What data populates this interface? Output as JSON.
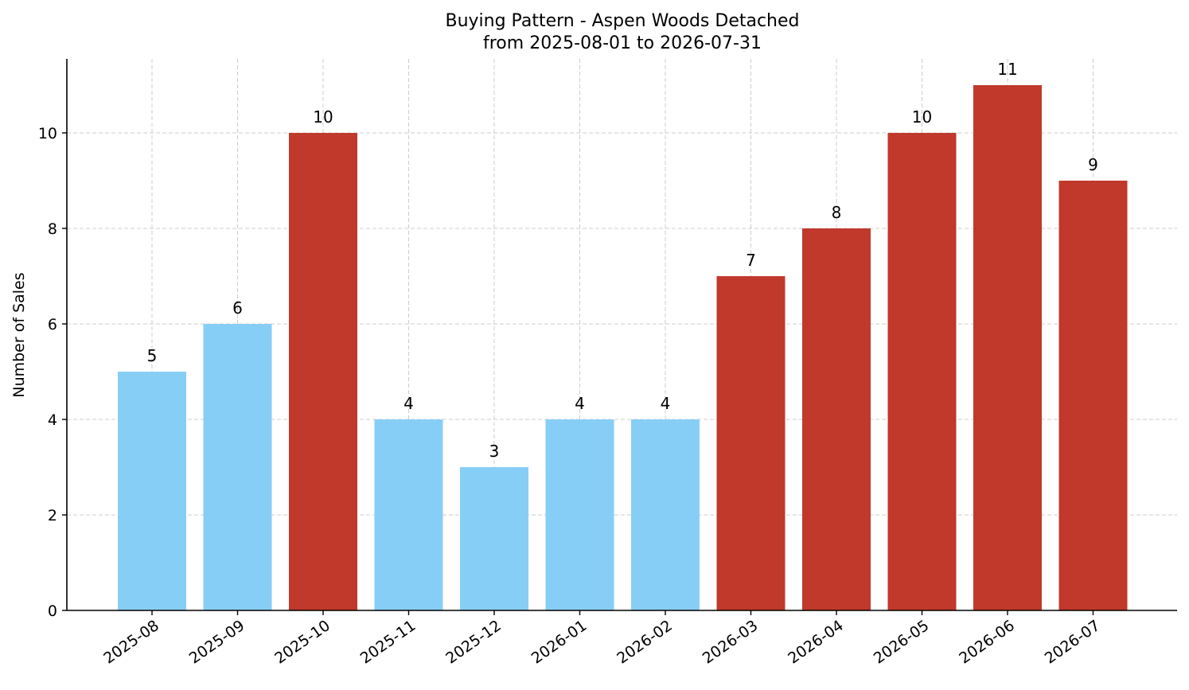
{
  "chart_data": {
    "type": "bar",
    "title_line1": "Buying Pattern - Aspen Woods Detached",
    "title_line2": "from 2025-08-01 to 2026-07-31",
    "xlabel": "",
    "ylabel": "Number of Sales",
    "categories": [
      "2025-08",
      "2025-09",
      "2025-10",
      "2025-11",
      "2025-12",
      "2026-01",
      "2026-02",
      "2026-03",
      "2026-04",
      "2026-05",
      "2026-06",
      "2026-07"
    ],
    "values": [
      5,
      6,
      10,
      4,
      3,
      4,
      4,
      7,
      8,
      10,
      11,
      9
    ],
    "bar_colors": [
      "#87cef7",
      "#87cef7",
      "#c0392b",
      "#87cef7",
      "#87cef7",
      "#87cef7",
      "#87cef7",
      "#c0392b",
      "#c0392b",
      "#c0392b",
      "#c0392b",
      "#c0392b"
    ],
    "ylim": [
      0,
      11.55
    ],
    "yticks": [
      0,
      2,
      4,
      6,
      8,
      10
    ],
    "grid": true,
    "legend": "none"
  }
}
